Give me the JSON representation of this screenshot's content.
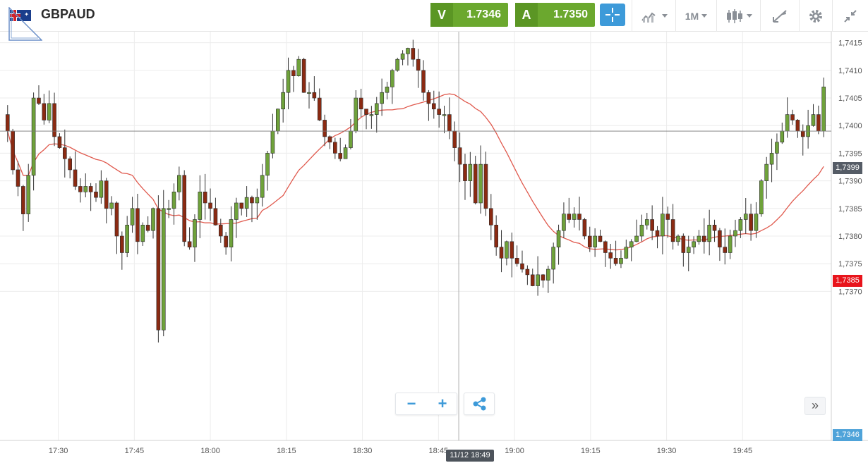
{
  "header": {
    "symbol": "GBPAUD",
    "sell": {
      "label": "V",
      "price": "1.7346"
    },
    "buy": {
      "label": "A",
      "price": "1.7350"
    },
    "timeframe": "1M",
    "icons": [
      "gb-flag-icon",
      "crosshair-icon",
      "chart-type-icon",
      "candlestick-icon",
      "draw-tool-icon",
      "gear-icon",
      "collapse-icon"
    ]
  },
  "chart_data": {
    "type": "candlestick",
    "price_axis": {
      "min": 1.7343,
      "max": 1.7417,
      "ticks": [
        "1,7415",
        "1,7410",
        "1,7405",
        "1,7400",
        "1,7395",
        "1,7390",
        "1,7385",
        "1,7380",
        "1,7375",
        "1,7370"
      ],
      "tick_values": [
        1.7415,
        1.741,
        1.7405,
        1.74,
        1.7395,
        1.739,
        1.7385,
        1.738,
        1.7375,
        1.737
      ]
    },
    "time_axis": {
      "ticks": [
        "17:30",
        "17:45",
        "18:00",
        "18:15",
        "18:30",
        "18:45",
        "19:00",
        "19:15",
        "19:30",
        "19:45"
      ],
      "tick_minutes": [
        30,
        45,
        60,
        75,
        90,
        105,
        120,
        135,
        150,
        165
      ],
      "start_minute": 18.5,
      "end_minute": 182.5
    },
    "current_price": "1,7399",
    "current_value": 1.7399,
    "red_price": "1,7385",
    "blue_price": "1,7346",
    "cursor_time": "11/12 18:49",
    "cursor_minute": 109,
    "up_color": "#6fa23b",
    "down_color": "#8b2a12",
    "ma_color": "#e05a4e",
    "closes": [
      1.7399,
      1.7392,
      1.7389,
      1.7384,
      1.7391,
      1.7405,
      1.7404,
      1.7401,
      1.7404,
      1.7398,
      1.7396,
      1.7394,
      1.7392,
      1.7389,
      1.7388,
      1.7389,
      1.7388,
      1.7387,
      1.739,
      1.7385,
      1.7386,
      1.738,
      1.7377,
      1.7382,
      1.7385,
      1.7379,
      1.7382,
      1.7381,
      1.7385,
      1.7363,
      1.7385,
      1.7385,
      1.7388,
      1.7391,
      1.7379,
      1.7378,
      1.7383,
      1.7388,
      1.7386,
      1.7385,
      1.7382,
      1.738,
      1.7378,
      1.7383,
      1.7386,
      1.7385,
      1.7387,
      1.7386,
      1.7387,
      1.7391,
      1.7395,
      1.7399,
      1.7403,
      1.7406,
      1.741,
      1.7409,
      1.7412,
      1.7406,
      1.7406,
      1.7405,
      1.7401,
      1.7398,
      1.7397,
      1.7395,
      1.7394,
      1.7396,
      1.7399,
      1.7405,
      1.7403,
      1.7402,
      1.7402,
      1.7404,
      1.7406,
      1.7407,
      1.741,
      1.7412,
      1.7413,
      1.7414,
      1.7412,
      1.741,
      1.7406,
      1.7404,
      1.7403,
      1.7402,
      1.7402,
      1.7399,
      1.7396,
      1.7393,
      1.739,
      1.7393,
      1.7386,
      1.7393,
      1.7385,
      1.7382,
      1.7378,
      1.7376,
      1.7379,
      1.7376,
      1.7375,
      1.7374,
      1.7373,
      1.7371,
      1.7373,
      1.7372,
      1.7374,
      1.7378,
      1.7381,
      1.7384,
      1.7383,
      1.7384,
      1.7383,
      1.738,
      1.7378,
      1.738,
      1.7379,
      1.7377,
      1.7376,
      1.7375,
      1.7376,
      1.7378,
      1.7379,
      1.738,
      1.7382,
      1.7383,
      1.7381,
      1.738,
      1.7384,
      1.7383,
      1.7379,
      1.738,
      1.7377,
      1.7378,
      1.7379,
      1.738,
      1.7379,
      1.7382,
      1.7381,
      1.7378,
      1.7377,
      1.738,
      1.7381,
      1.7383,
      1.7384,
      1.7381,
      1.7384,
      1.739,
      1.7393,
      1.7395,
      1.7397,
      1.7399,
      1.7402,
      1.7401,
      1.7399,
      1.7398,
      1.74,
      1.7402,
      1.7399,
      1.7407
    ]
  }
}
